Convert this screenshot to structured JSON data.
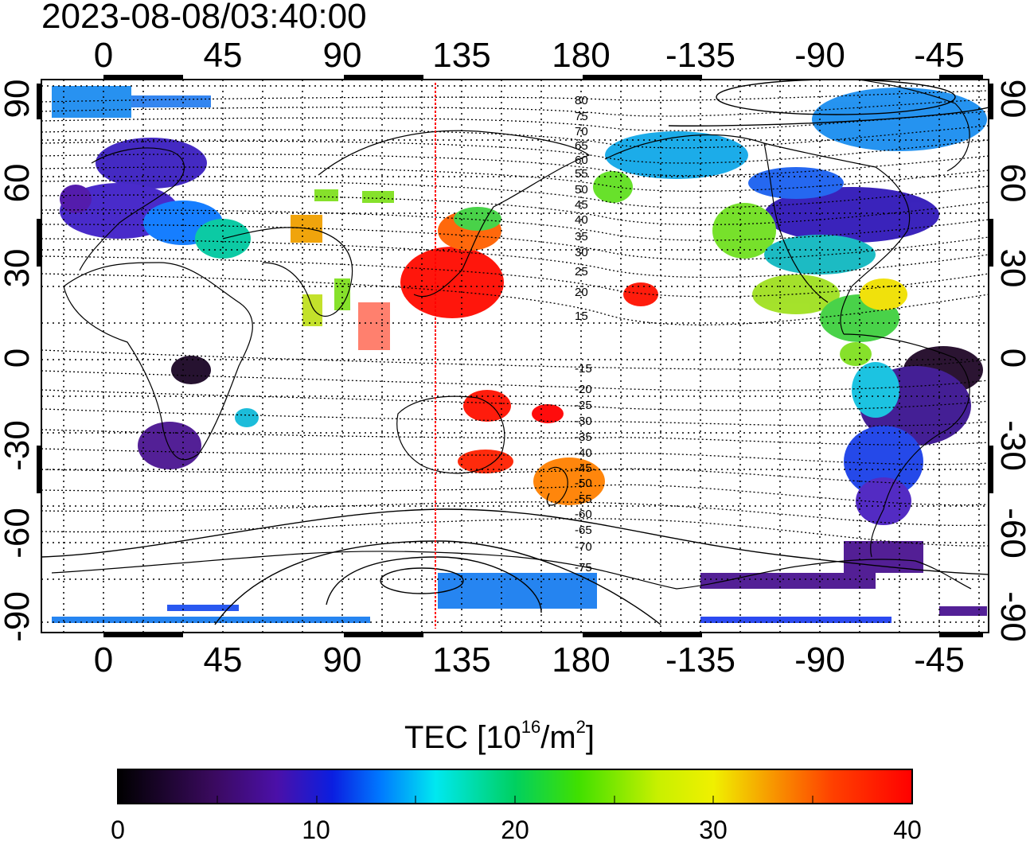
{
  "timestamp": "2023-08-08/03:40:00",
  "map": {
    "top_axis_labels": [
      "0",
      "45",
      "90",
      "135",
      "180",
      "-135",
      "-90",
      "-45"
    ],
    "bottom_axis_labels": [
      "0",
      "45",
      "90",
      "135",
      "180",
      "-135",
      "-90",
      "-45"
    ],
    "left_axis_labels": [
      "90",
      "60",
      "30",
      "0",
      "-30",
      "-60",
      "-90"
    ],
    "right_axis_labels": [
      "90",
      "60",
      "30",
      "0",
      "-30",
      "-60",
      "-90"
    ],
    "magnetic_latitude_labels": [
      "80",
      "75",
      "70",
      "65",
      "60",
      "55",
      "50",
      "45",
      "40",
      "35",
      "30",
      "25",
      "20",
      "15",
      "-15",
      "-20",
      "-25",
      "-30",
      "-35",
      "-40",
      "-45",
      "-50",
      "-55",
      "-60",
      "-65",
      "-70",
      "-75"
    ],
    "sun_meridian_line_color": "#ff0000"
  },
  "colorbar": {
    "title_prefix": "TEC  [10",
    "title_exp1": "16",
    "title_mid": "/m",
    "title_exp2": "2",
    "title_suffix": "]",
    "tick_labels": [
      "0",
      "10",
      "20",
      "30",
      "40"
    ],
    "range": [
      0,
      40
    ],
    "colormap": [
      "#000000",
      "#3a0a5e",
      "#4b10a8",
      "#0b1ee0",
      "#0078ff",
      "#00e8f0",
      "#00d060",
      "#40e000",
      "#c8f000",
      "#f0f000",
      "#f89000",
      "#ff4000",
      "#ff0000"
    ]
  }
}
